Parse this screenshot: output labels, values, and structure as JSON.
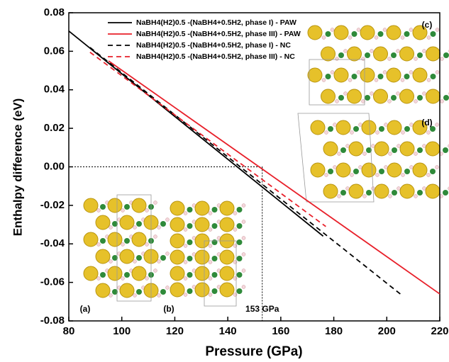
{
  "chart_data": {
    "type": "line",
    "xlabel": "Pressure (GPa)",
    "ylabel": "Enthalpy difference (eV)",
    "xlim": [
      80,
      220
    ],
    "xticks": [
      80,
      100,
      120,
      140,
      160,
      180,
      200,
      220
    ],
    "ylim": [
      -0.08,
      0.08
    ],
    "yticks": [
      0.08,
      0.06,
      0.04,
      0.02,
      {
        "value": 0,
        "label": "0.00"
      },
      -0.02,
      -0.04,
      -0.06,
      -0.08
    ],
    "series": [
      {
        "name": "NaBH4(H2)0.5 -(NaBH4+0.5H2, phase I) - PAW",
        "color": "#000000",
        "dash": false,
        "x": [
          80,
          176
        ],
        "values": [
          0.0705,
          -0.036
        ]
      },
      {
        "name": "NaBH4(H2)0.5 -(NaBH4+0.5H2, phase III) - PAW",
        "color": "#e8202a",
        "dash": false,
        "x": [
          95,
          220
        ],
        "values": [
          0.055,
          -0.066
        ]
      },
      {
        "name": "NaBH4(H2)0.5 -(NaBH4+0.5H2, phase I) - NC",
        "color": "#000000",
        "dash": true,
        "x": [
          88,
          206
        ],
        "values": [
          0.062,
          -0.067
        ]
      },
      {
        "name": "NaBH4(H2)0.5 -(NaBH4+0.5H2, phase III) - NC",
        "color": "#e8202a",
        "dash": true,
        "x": [
          88,
          177
        ],
        "values": [
          0.0595,
          -0.031
        ]
      }
    ],
    "reference_x": 153,
    "reference_label": "153 GPa",
    "panel_labels": [
      "(a)",
      "(b)",
      "(c)",
      "(d)"
    ]
  }
}
